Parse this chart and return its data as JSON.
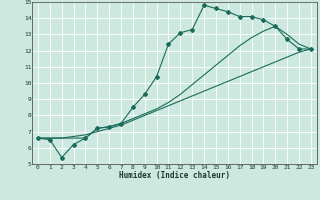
{
  "xlabel": "Humidex (Indice chaleur)",
  "bg_color": "#cce8df",
  "grid_color": "#ffffff",
  "line_color": "#1a6b5a",
  "xlim": [
    -0.5,
    23.5
  ],
  "ylim": [
    5,
    15
  ],
  "xticks": [
    0,
    1,
    2,
    3,
    4,
    5,
    6,
    7,
    8,
    9,
    10,
    11,
    12,
    13,
    14,
    15,
    16,
    17,
    18,
    19,
    20,
    21,
    22,
    23
  ],
  "yticks": [
    5,
    6,
    7,
    8,
    9,
    10,
    11,
    12,
    13,
    14,
    15
  ],
  "line1_x": [
    0,
    1,
    2,
    3,
    4,
    5,
    6,
    7,
    8,
    9,
    10,
    11,
    12,
    13,
    14,
    15,
    16,
    17,
    18,
    19,
    20,
    21,
    22,
    23
  ],
  "line1_y": [
    6.6,
    6.5,
    5.4,
    6.2,
    6.6,
    7.2,
    7.3,
    7.5,
    8.5,
    9.3,
    10.4,
    12.4,
    13.1,
    13.3,
    14.8,
    14.6,
    14.4,
    14.1,
    14.1,
    13.9,
    13.5,
    12.7,
    12.1,
    12.1
  ],
  "line2_x": [
    0,
    1,
    2,
    3,
    4,
    5,
    6,
    7,
    8,
    9,
    10,
    11,
    12,
    13,
    14,
    15,
    16,
    17,
    18,
    19,
    20,
    21,
    22,
    23
  ],
  "line2_y": [
    6.6,
    6.6,
    6.6,
    6.7,
    6.8,
    7.0,
    7.2,
    7.4,
    7.7,
    8.0,
    8.3,
    8.6,
    8.9,
    9.2,
    9.5,
    9.8,
    10.1,
    10.4,
    10.7,
    11.0,
    11.3,
    11.6,
    11.9,
    12.1
  ],
  "line3_x": [
    0,
    4,
    5,
    6,
    7,
    8,
    9,
    10,
    11,
    12,
    13,
    14,
    15,
    16,
    17,
    18,
    19,
    20,
    21,
    22,
    23
  ],
  "line3_y": [
    6.6,
    6.6,
    7.2,
    7.3,
    7.5,
    7.8,
    8.1,
    8.4,
    8.8,
    9.3,
    9.9,
    10.5,
    11.1,
    11.7,
    12.3,
    12.8,
    13.2,
    13.5,
    13.0,
    12.4,
    12.1
  ]
}
